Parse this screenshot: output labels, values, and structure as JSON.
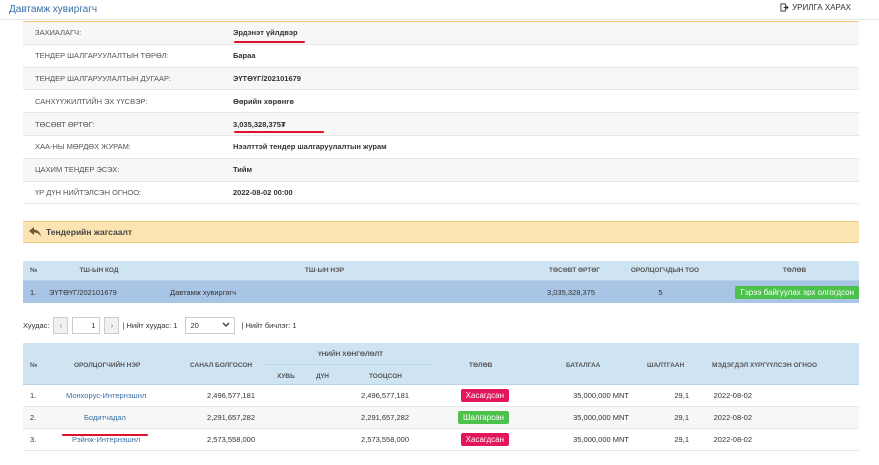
{
  "header": {
    "title": "Давтамж хувиргагч",
    "print_label": "УРИЛГА ХАРАХ"
  },
  "info_rows": [
    {
      "label": "ЗАХИАЛАГЧ:",
      "value": "Эрдэнэт үйлдвэр"
    },
    {
      "label": "ТЕНДЕР ШАЛГАРУУЛАЛТЫН ТӨРӨЛ:",
      "value": "Бараа"
    },
    {
      "label": "ТЕНДЕР ШАЛГАРУУЛАЛТЫН ДУГААР:",
      "value": "ЭҮТӨҮГ/202101679"
    },
    {
      "label": "САНХҮҮЖИЛТИЙН ЭХ ҮҮСВЭР:",
      "value": "Өөрийн хөрөнгө"
    },
    {
      "label": "ТӨСӨВТ ӨРТӨГ:",
      "value": "3,035,328,375₮"
    },
    {
      "label": "ХАА-НЫ МӨРДӨХ ЖУРАМ:",
      "value": "Нээлттэй тендер шалгаруулалтын журам"
    },
    {
      "label": "ЦАХИМ ТЕНДЕР ЭСЭХ:",
      "value": "Тийм"
    },
    {
      "label": "ҮР ДҮН НИЙТЭЛСЭН ОГНОО:",
      "value": "2022-08-02 00:00"
    }
  ],
  "section": {
    "title": "Тендерийн жагсаалт"
  },
  "tender_table": {
    "columns": [
      "№",
      "ТШ-ЫН КОД",
      "ТШ-ЫН НЭР",
      "ТӨСӨВТ ӨРТӨГ",
      "ОРОЛЦОГЧДЫН ТОО",
      "ТӨЛӨВ"
    ],
    "row": {
      "no": "1.",
      "code": "ЭҮТӨҮГ/202101679",
      "name": "Давтамж хувиргагч",
      "budget": "3,035,328,375",
      "count": "5",
      "status": "Гэрээ байгуулах эрх олгогдсон"
    }
  },
  "pager": {
    "page_label": "Хуудас:",
    "prev": "‹",
    "page": "1",
    "next": "›",
    "total_pages": "| Нийт хуудас: 1",
    "per_page": "20",
    "total_rows": "| Нийт бичлэг: 1"
  },
  "bid_table": {
    "headers": {
      "no": "№",
      "name": "ОРОЛЦОГЧИЙН НЭР",
      "offer": "САНАЛ БОЛГОСОН",
      "price_group": "ҮНИЙН ХӨНГӨЛӨЛТ",
      "pct": "ХУВЬ",
      "amount": "ДҮН",
      "evaluated": "ТООЦСОН",
      "status": "ТӨЛӨВ",
      "guarantee": "БАТАЛГАА",
      "reason": "ШАЛТГААН",
      "date": "МЭДЭГДЭЛ ХҮРГҮҮЛСЭН ОГНОО"
    },
    "rows": [
      {
        "no": "1.",
        "name": "Монхорус-Интернэшнл",
        "offer": "2,496,577,181",
        "evaluated": "2,496,577,181",
        "status": "Хасагдсан",
        "status_color": "#e3165b",
        "guarantee": "35,000,000 MNT",
        "reason": "29,1",
        "date": "2022-08-02"
      },
      {
        "no": "2.",
        "name": "Бодитчадал",
        "offer": "2,291,657,282",
        "evaluated": "2,291,657,282",
        "status": "Шалгарсан",
        "status_color": "#4cc24c",
        "guarantee": "35,000,000 MNT",
        "reason": "29,1",
        "date": "2022-08-02"
      },
      {
        "no": "3.",
        "name": "Рэйнж-Интернэшнл",
        "offer": "2,573,558,000",
        "evaluated": "2,573,558,000",
        "status": "Хасагдсан",
        "status_color": "#e3165b",
        "guarantee": "35,000,000 MNT",
        "reason": "29,1",
        "date": "2022-08-02"
      }
    ]
  }
}
